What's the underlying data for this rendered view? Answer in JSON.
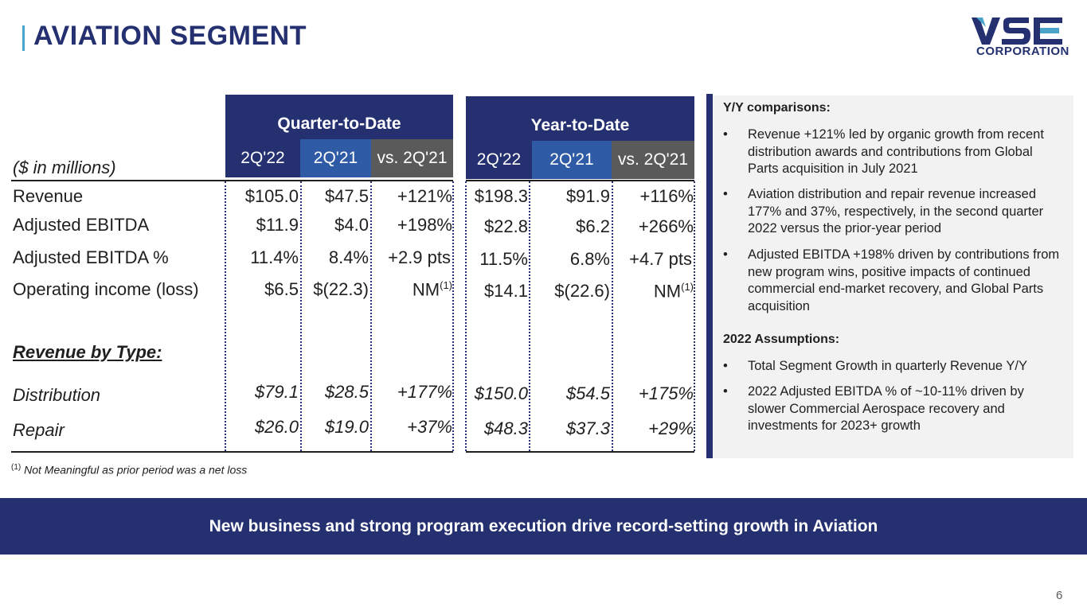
{
  "header": {
    "title": "AVIATION SEGMENT",
    "logo_main": "VSE",
    "logo_sub": "CORPORATION"
  },
  "table": {
    "units_label": "($ in millions)",
    "qtd": {
      "title": "Quarter-to-Date",
      "cols": [
        "2Q'22",
        "2Q'21",
        "vs. 2Q'21"
      ]
    },
    "ytd": {
      "title": "Year-to-Date",
      "cols": [
        "2Q'22",
        "2Q'21",
        "vs. 2Q'21"
      ]
    },
    "rows": [
      {
        "label": "Revenue",
        "qtd": [
          "$105.0",
          "$47.5",
          "+121%"
        ],
        "ytd": [
          "$198.3",
          "$91.9",
          "+116%"
        ]
      },
      {
        "label": "Adjusted EBITDA",
        "qtd": [
          "$11.9",
          "$4.0",
          "+198%"
        ],
        "ytd": [
          "$22.8",
          "$6.2",
          "+266%"
        ]
      },
      {
        "label": "Adjusted EBITDA %",
        "qtd": [
          "11.4%",
          "8.4%",
          "+2.9 pts"
        ],
        "ytd": [
          "11.5%",
          "6.8%",
          "+4.7 pts"
        ]
      },
      {
        "label": "Operating income (loss)",
        "qtd": [
          "$6.5",
          "$(22.3)",
          "NM"
        ],
        "ytd": [
          "$14.1",
          "$(22.6)",
          "NM"
        ]
      }
    ],
    "nm_footnote_mark": "(1)",
    "by_type_label": "Revenue by Type:",
    "type_rows": [
      {
        "label": "Distribution",
        "qtd": [
          "$79.1",
          "$28.5",
          "+177%"
        ],
        "ytd": [
          "$150.0",
          "$54.5",
          "+175%"
        ]
      },
      {
        "label": "Repair",
        "qtd": [
          "$26.0",
          "$19.0",
          "+37%"
        ],
        "ytd": [
          "$48.3",
          "$37.3",
          "+29%"
        ]
      }
    ],
    "footnote_mark": "(1)",
    "footnote": "Not Meaningful as prior period was a net loss"
  },
  "sidebar": {
    "yy_title": "Y/Y comparisons:",
    "yy_bullets": [
      "Revenue +121% led by organic growth from recent distribution awards and contributions from Global Parts acquisition in July 2021",
      "Aviation distribution and repair revenue increased 177% and 37%, respectively, in the second quarter 2022 versus the prior-year period",
      "Adjusted EBITDA +198% driven by contributions from new program wins, positive impacts of continued commercial end-market recovery, and Global Parts acquisition"
    ],
    "assump_title": "2022 Assumptions:",
    "assump_bullets": [
      "Total Segment Growth in quarterly Revenue Y/Y",
      "2022 Adjusted EBITDA % of ~10-11% driven by slower Commercial Aerospace recovery and investments for 2023+ growth"
    ],
    "bullet_char": "•"
  },
  "banner": "New business and strong program execution drive record-setting growth in Aviation",
  "page_number": "6",
  "colors": {
    "navy": "#243070",
    "blue": "#2f5aa6",
    "grey": "#5a5a5a",
    "accent": "#4aa3c8"
  }
}
